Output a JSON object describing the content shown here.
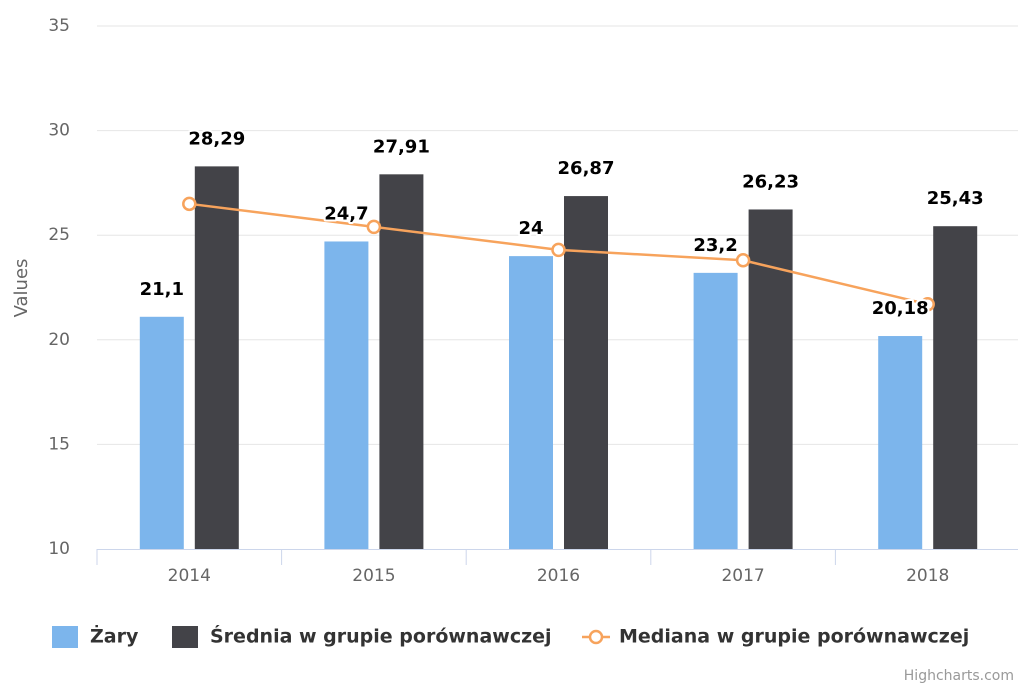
{
  "chart_data": {
    "type": "bar",
    "y_axis_label": "Values",
    "categories": [
      "2014",
      "2015",
      "2016",
      "2017",
      "2018"
    ],
    "series": [
      {
        "name": "Żary",
        "type": "bar",
        "color": "#7cb5ec",
        "values": [
          21.1,
          24.7,
          24,
          23.2,
          20.18
        ],
        "value_labels": [
          "21,1",
          "24,7",
          "24",
          "23,2",
          "20,18"
        ]
      },
      {
        "name": "Średnia w grupie porównawczej",
        "type": "bar",
        "color": "#434348",
        "values": [
          28.29,
          27.91,
          26.87,
          26.23,
          25.43
        ],
        "value_labels": [
          "28,29",
          "27,91",
          "26,87",
          "26,23",
          "25,43"
        ]
      },
      {
        "name": "Mediana w grupie porównawczej",
        "type": "line",
        "color": "#f7a35c",
        "values": [
          26.5,
          25.4,
          24.3,
          23.8,
          21.7
        ]
      }
    ],
    "ylim": [
      10,
      35
    ],
    "yticks": [
      10,
      15,
      20,
      25,
      30,
      35
    ],
    "grid": true,
    "credits": "Highcharts.com"
  }
}
